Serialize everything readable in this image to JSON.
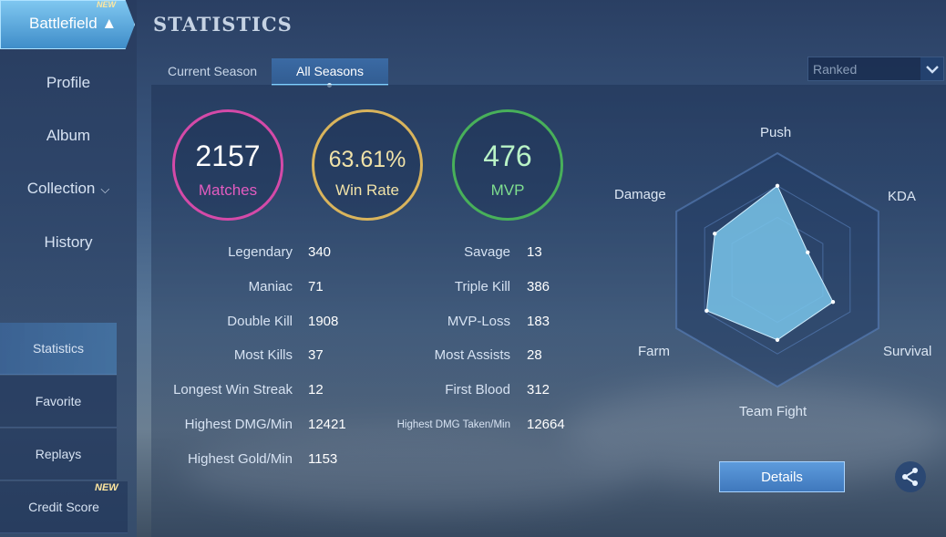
{
  "header": {
    "title": "STATISTICS"
  },
  "sidebar": {
    "items": [
      {
        "label": "Profile"
      },
      {
        "label": "Album"
      },
      {
        "label": "Collection"
      },
      {
        "label": "History"
      },
      {
        "label": "Battlefield",
        "badge": "NEW"
      }
    ],
    "sub_items": [
      {
        "label": "Statistics"
      },
      {
        "label": "Favorite"
      },
      {
        "label": "Replays"
      },
      {
        "label": "Credit Score",
        "badge": "NEW"
      }
    ]
  },
  "tabs": [
    {
      "label": "Current Season"
    },
    {
      "label": "All Seasons"
    }
  ],
  "filter": {
    "selected": "Ranked"
  },
  "summary": {
    "matches": {
      "value": "2157",
      "label": "Matches"
    },
    "win_rate": {
      "value": "63.61%",
      "label": "Win Rate"
    },
    "mvp": {
      "value": "476",
      "label": "MVP"
    }
  },
  "stats_left": [
    {
      "label": "Legendary",
      "value": "340"
    },
    {
      "label": "Maniac",
      "value": "71"
    },
    {
      "label": "Double Kill",
      "value": "1908"
    },
    {
      "label": "Most Kills",
      "value": "37"
    },
    {
      "label": "Longest Win Streak",
      "value": "12"
    },
    {
      "label": "Highest DMG/Min",
      "value": "12421"
    },
    {
      "label": "Highest Gold/Min",
      "value": "1153"
    }
  ],
  "stats_right": [
    {
      "label": "Savage",
      "value": "13"
    },
    {
      "label": "Triple Kill",
      "value": "386"
    },
    {
      "label": "MVP-Loss",
      "value": "183"
    },
    {
      "label": "Most Assists",
      "value": "28"
    },
    {
      "label": "First Blood",
      "value": "312"
    },
    {
      "label": "Highest DMG Taken/Min",
      "value": "12664"
    }
  ],
  "radar": {
    "axes": [
      "Push",
      "KDA",
      "Survival",
      "Team Fight",
      "Farm",
      "Damage"
    ],
    "values": [
      0.72,
      0.3,
      0.55,
      0.6,
      0.7,
      0.62
    ],
    "fill_color": "#79c4ea"
  },
  "buttons": {
    "details": "Details"
  },
  "icons": {
    "back": "back-arrow-icon",
    "share": "share-icon",
    "dropdown": "chevron-down-icon"
  }
}
